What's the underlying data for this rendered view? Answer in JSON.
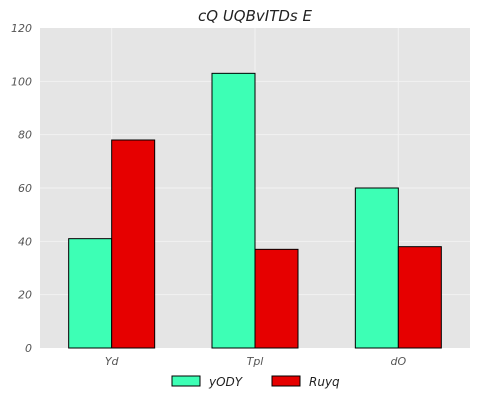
{
  "chart_data": {
    "type": "bar",
    "title": "cQ UQBvITDs E",
    "xlabel": "",
    "ylabel": "",
    "categories": [
      "Yd",
      "Tpl",
      "dO"
    ],
    "series": [
      {
        "name": "yODY",
        "values": [
          41,
          103,
          60
        ],
        "color": "#3dffb5"
      },
      {
        "name": "Ruyq",
        "values": [
          78,
          37,
          38
        ],
        "color": "#e60000"
      }
    ],
    "ylim": [
      0,
      120
    ],
    "yticks": [
      0,
      20,
      40,
      60,
      80,
      100,
      120
    ],
    "grid": true,
    "plot_background": "#e5e5e5",
    "legend_position": "bottom-center"
  }
}
